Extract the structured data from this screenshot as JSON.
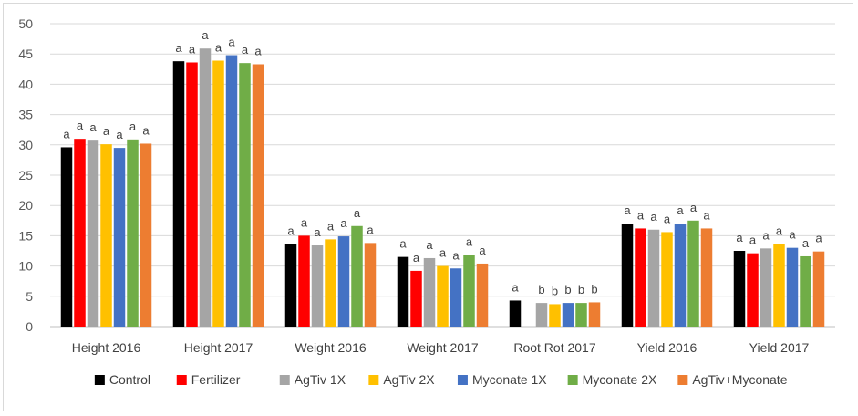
{
  "chart_data": {
    "type": "bar",
    "categories": [
      "Height 2016",
      "Height 2017",
      "Weight 2016",
      "Weight 2017",
      "Root Rot 2017",
      "Yield 2016",
      "Yield 2017"
    ],
    "ylim": [
      0,
      50
    ],
    "yticks": [
      0,
      5,
      10,
      15,
      20,
      25,
      30,
      35,
      40,
      45,
      50
    ],
    "grid": true,
    "legend_position": "bottom",
    "series": [
      {
        "name": "Control",
        "color": "#000000",
        "values": [
          29.6,
          43.8,
          13.6,
          11.5,
          4.3,
          17.0,
          12.5
        ],
        "labels": [
          "a",
          "a",
          "a",
          "a",
          "a",
          "a",
          "a"
        ]
      },
      {
        "name": "Fertilizer",
        "color": "#ff0000",
        "values": [
          31.0,
          43.6,
          15.0,
          9.2,
          null,
          16.2,
          12.1
        ],
        "labels": [
          "a",
          "a",
          "a",
          "a",
          "",
          "a",
          "a"
        ]
      },
      {
        "name": "AgTiv 1X",
        "color": "#a5a5a5",
        "values": [
          30.7,
          45.9,
          13.4,
          11.3,
          3.9,
          16.0,
          12.9
        ],
        "labels": [
          "a",
          "a",
          "a",
          "a",
          "b",
          "a",
          "a"
        ]
      },
      {
        "name": "AgTiv 2X",
        "color": "#ffc000",
        "values": [
          30.1,
          43.9,
          14.4,
          10.0,
          3.7,
          15.6,
          13.6
        ],
        "labels": [
          "a",
          "a",
          "a",
          "a",
          "b",
          "a",
          "a"
        ]
      },
      {
        "name": "Myconate 1X",
        "color": "#4472c4",
        "values": [
          29.5,
          44.8,
          14.9,
          9.6,
          3.9,
          17.0,
          13.0
        ],
        "labels": [
          "a",
          "a",
          "a",
          "a",
          "b",
          "a",
          "a"
        ]
      },
      {
        "name": "Myconate 2X",
        "color": "#70ad47",
        "values": [
          30.9,
          43.5,
          16.6,
          11.8,
          3.9,
          17.5,
          11.6
        ],
        "labels": [
          "a",
          "a",
          "a",
          "a",
          "b",
          "a",
          "a"
        ]
      },
      {
        "name": "AgTiv+Myconate",
        "color": "#ed7d31",
        "values": [
          30.2,
          43.3,
          13.8,
          10.4,
          4.0,
          16.2,
          12.4
        ],
        "labels": [
          "a",
          "a",
          "a",
          "a",
          "b",
          "a",
          "a"
        ]
      }
    ]
  }
}
